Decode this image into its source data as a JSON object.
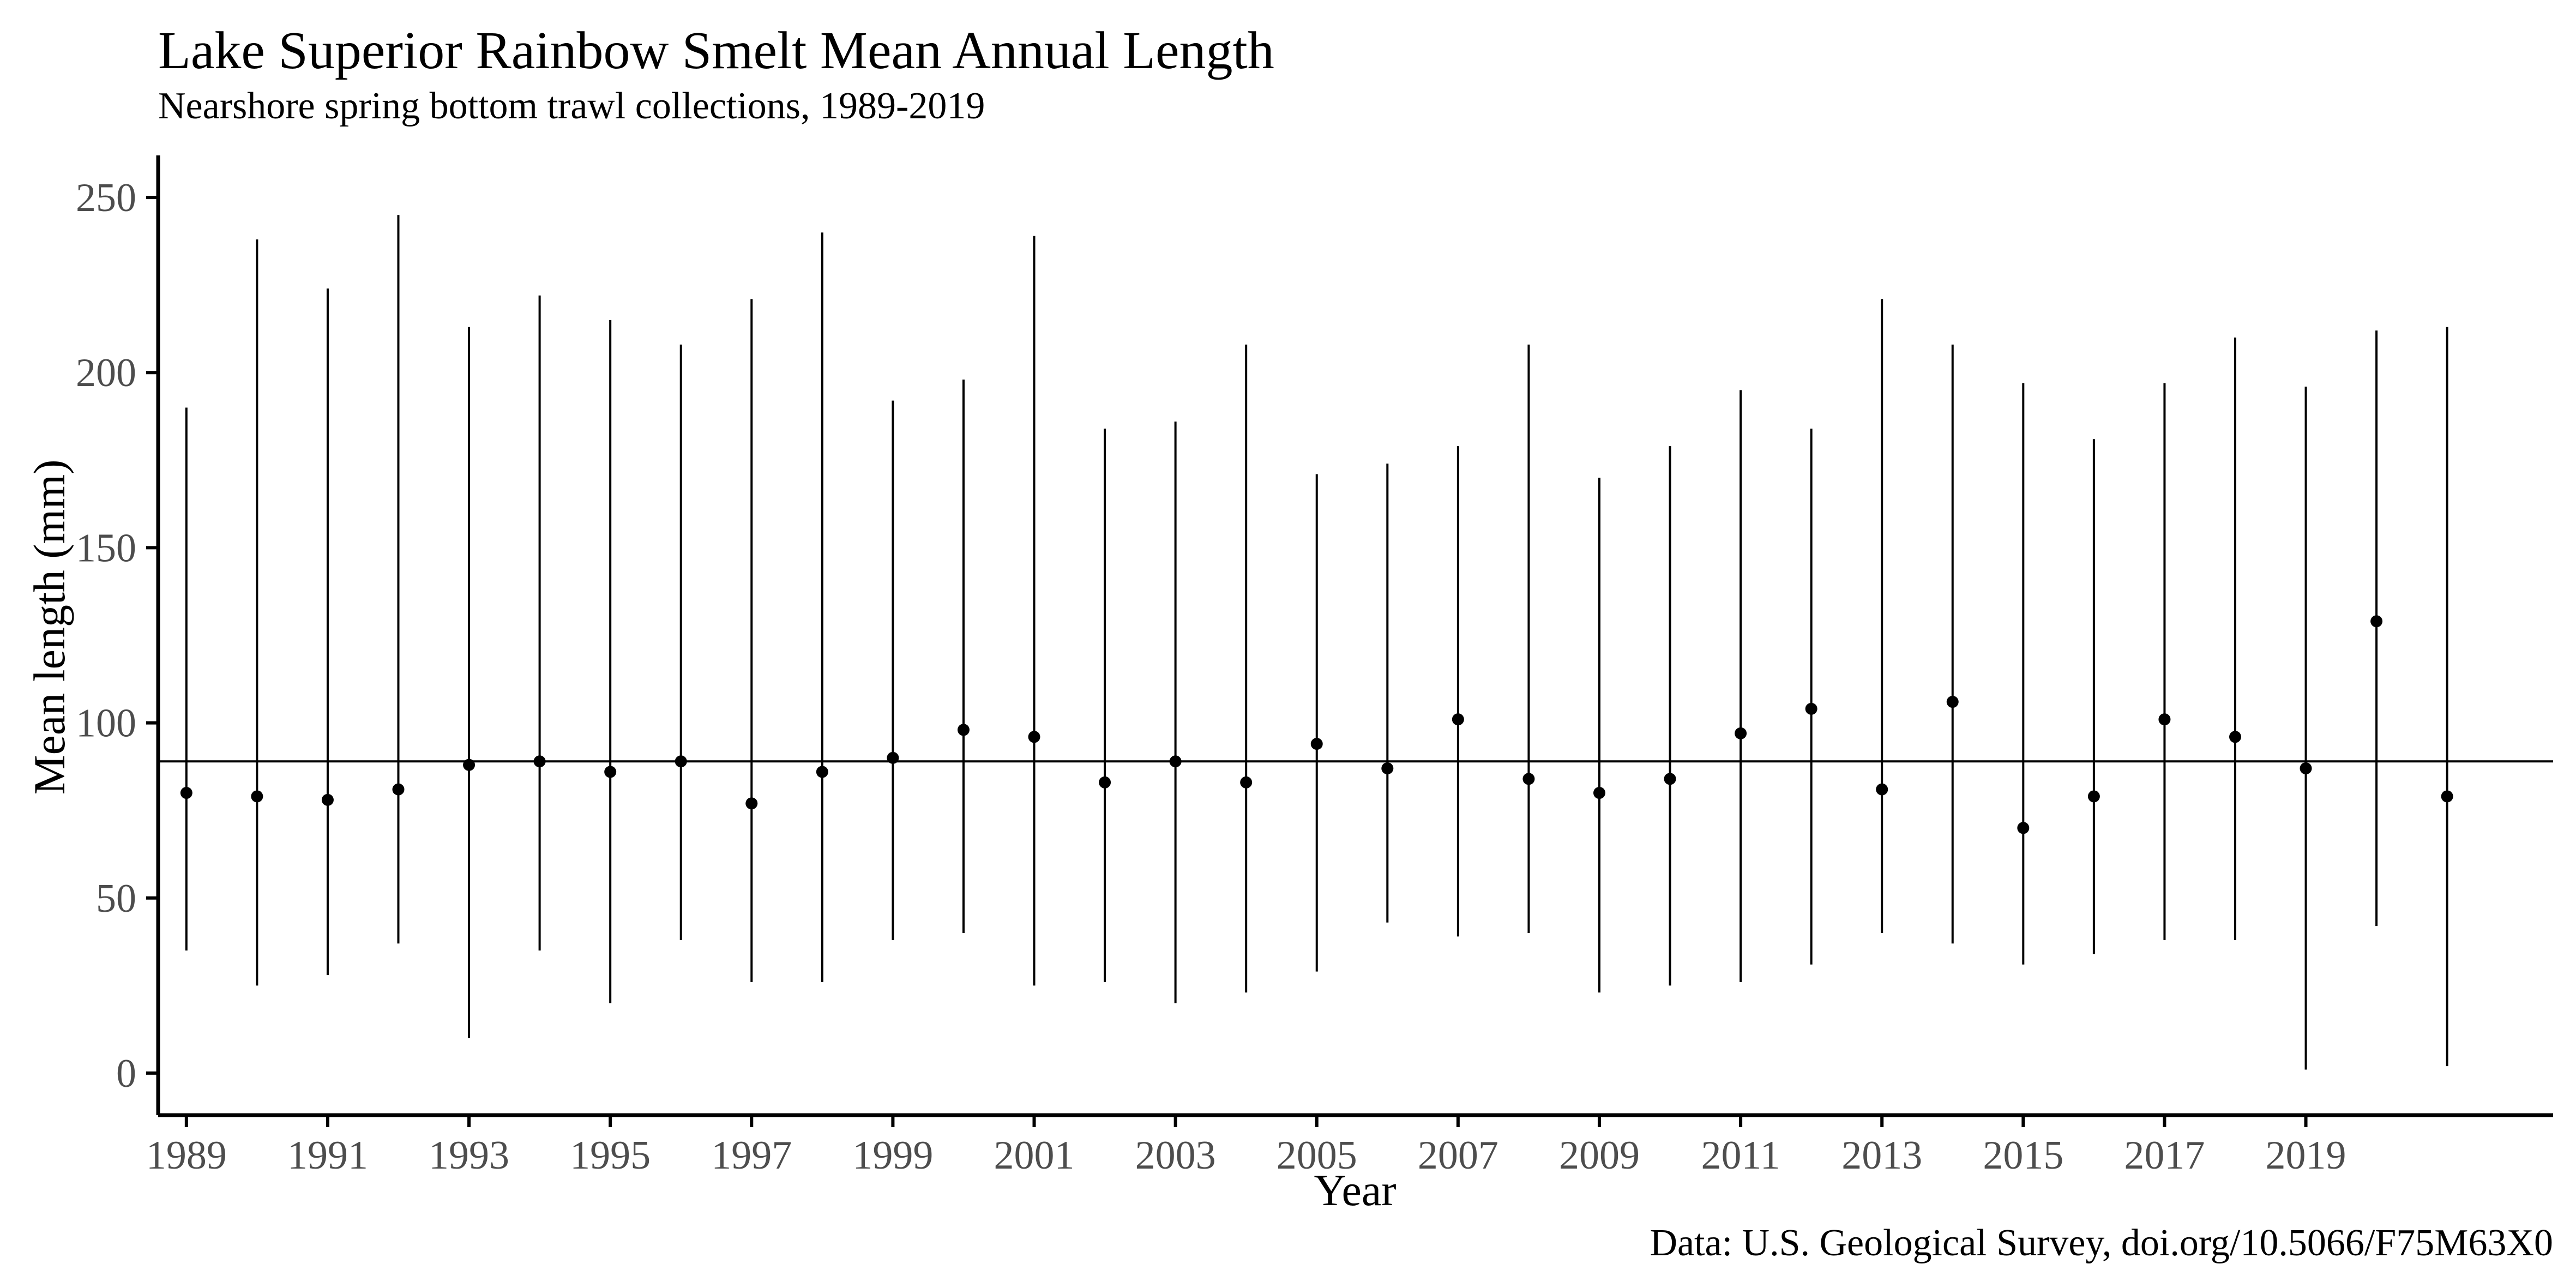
{
  "chart_data": {
    "type": "scatter",
    "title": "Lake Superior Rainbow Smelt Mean Annual Length",
    "subtitle": "Nearshore spring bottom trawl collections, 1989-2019",
    "xlabel": "Year",
    "ylabel": "Mean length (mm)",
    "caption": "Data: U.S. Geological Survey, doi.org/10.5066/F75M63X0",
    "x_ticks": [
      "1989",
      "1991",
      "1993",
      "1995",
      "1997",
      "1999",
      "2001",
      "2003",
      "2005",
      "2007",
      "2009",
      "2011",
      "2013",
      "2015",
      "2017",
      "2019"
    ],
    "y_ticks": [
      "0",
      "50",
      "100",
      "150",
      "200",
      "250"
    ],
    "xlim": [
      1988.6,
      2022.5
    ],
    "ylim": [
      -12,
      262
    ],
    "grid": false,
    "reference_line": 89,
    "x": [
      1989,
      1990,
      1991,
      1992,
      1993,
      1994,
      1995,
      1996,
      1997,
      1998,
      1999,
      2000,
      2001,
      2002,
      2003,
      2004,
      2005,
      2006,
      2007,
      2008,
      2009,
      2010,
      2011,
      2012,
      2013,
      2014,
      2015,
      2016,
      2017,
      2018,
      2019,
      2020,
      2021
    ],
    "mean": [
      80,
      79,
      78,
      81,
      88,
      89,
      86,
      89,
      77,
      86,
      90,
      98,
      96,
      83,
      89,
      83,
      94,
      87,
      101,
      84,
      80,
      84,
      97,
      104,
      81,
      106,
      70,
      79,
      101,
      96,
      87,
      129,
      79
    ],
    "lower": [
      35,
      25,
      28,
      37,
      10,
      35,
      20,
      38,
      26,
      26,
      38,
      40,
      25,
      26,
      20,
      23,
      29,
      43,
      39,
      40,
      23,
      25,
      26,
      31,
      40,
      37,
      31,
      34,
      38,
      38,
      1,
      42,
      2
    ],
    "upper": [
      190,
      238,
      224,
      245,
      213,
      222,
      215,
      208,
      221,
      240,
      192,
      198,
      239,
      184,
      186,
      208,
      171,
      174,
      179,
      208,
      170,
      179,
      195,
      184,
      221,
      208,
      197,
      181,
      197,
      210,
      196,
      212,
      213
    ],
    "colors": {
      "points": "#000000",
      "axis": "#000000",
      "tick_labels": "#4d4d4d",
      "background": "#ffffff"
    }
  }
}
